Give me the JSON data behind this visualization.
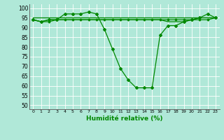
{
  "title": "",
  "xlabel": "Humidité relative (%)",
  "ylabel": "",
  "xlim": [
    -0.5,
    23.5
  ],
  "ylim": [
    48,
    102
  ],
  "yticks": [
    50,
    55,
    60,
    65,
    70,
    75,
    80,
    85,
    90,
    95,
    100
  ],
  "xticks": [
    0,
    1,
    2,
    3,
    4,
    5,
    6,
    7,
    8,
    9,
    10,
    11,
    12,
    13,
    14,
    15,
    16,
    17,
    18,
    19,
    20,
    21,
    22,
    23
  ],
  "bg_color": "#b0e8d8",
  "grid_color": "#88ccbb",
  "line_color": "#008800",
  "line1": [
    94,
    93,
    94,
    94,
    97,
    97,
    97,
    98,
    97,
    89,
    79,
    69,
    63,
    59,
    59,
    59,
    86,
    91,
    91,
    93,
    94,
    95,
    97,
    95
  ],
  "line2": [
    94,
    93,
    93,
    94,
    94,
    94,
    94,
    94,
    94,
    94,
    94,
    94,
    94,
    94,
    94,
    94,
    94,
    94,
    94,
    94,
    94,
    94,
    94,
    95
  ],
  "line3": [
    95,
    95,
    95,
    95,
    95,
    95,
    95,
    95,
    95,
    95,
    95,
    95,
    95,
    95,
    95,
    95,
    95,
    95,
    95,
    95,
    95,
    95,
    95,
    95
  ],
  "line4": [
    94,
    93,
    94,
    94,
    94,
    94,
    94,
    94,
    94,
    94,
    94,
    94,
    94,
    94,
    94,
    94,
    94,
    93,
    93,
    93,
    94,
    95,
    95,
    95
  ]
}
